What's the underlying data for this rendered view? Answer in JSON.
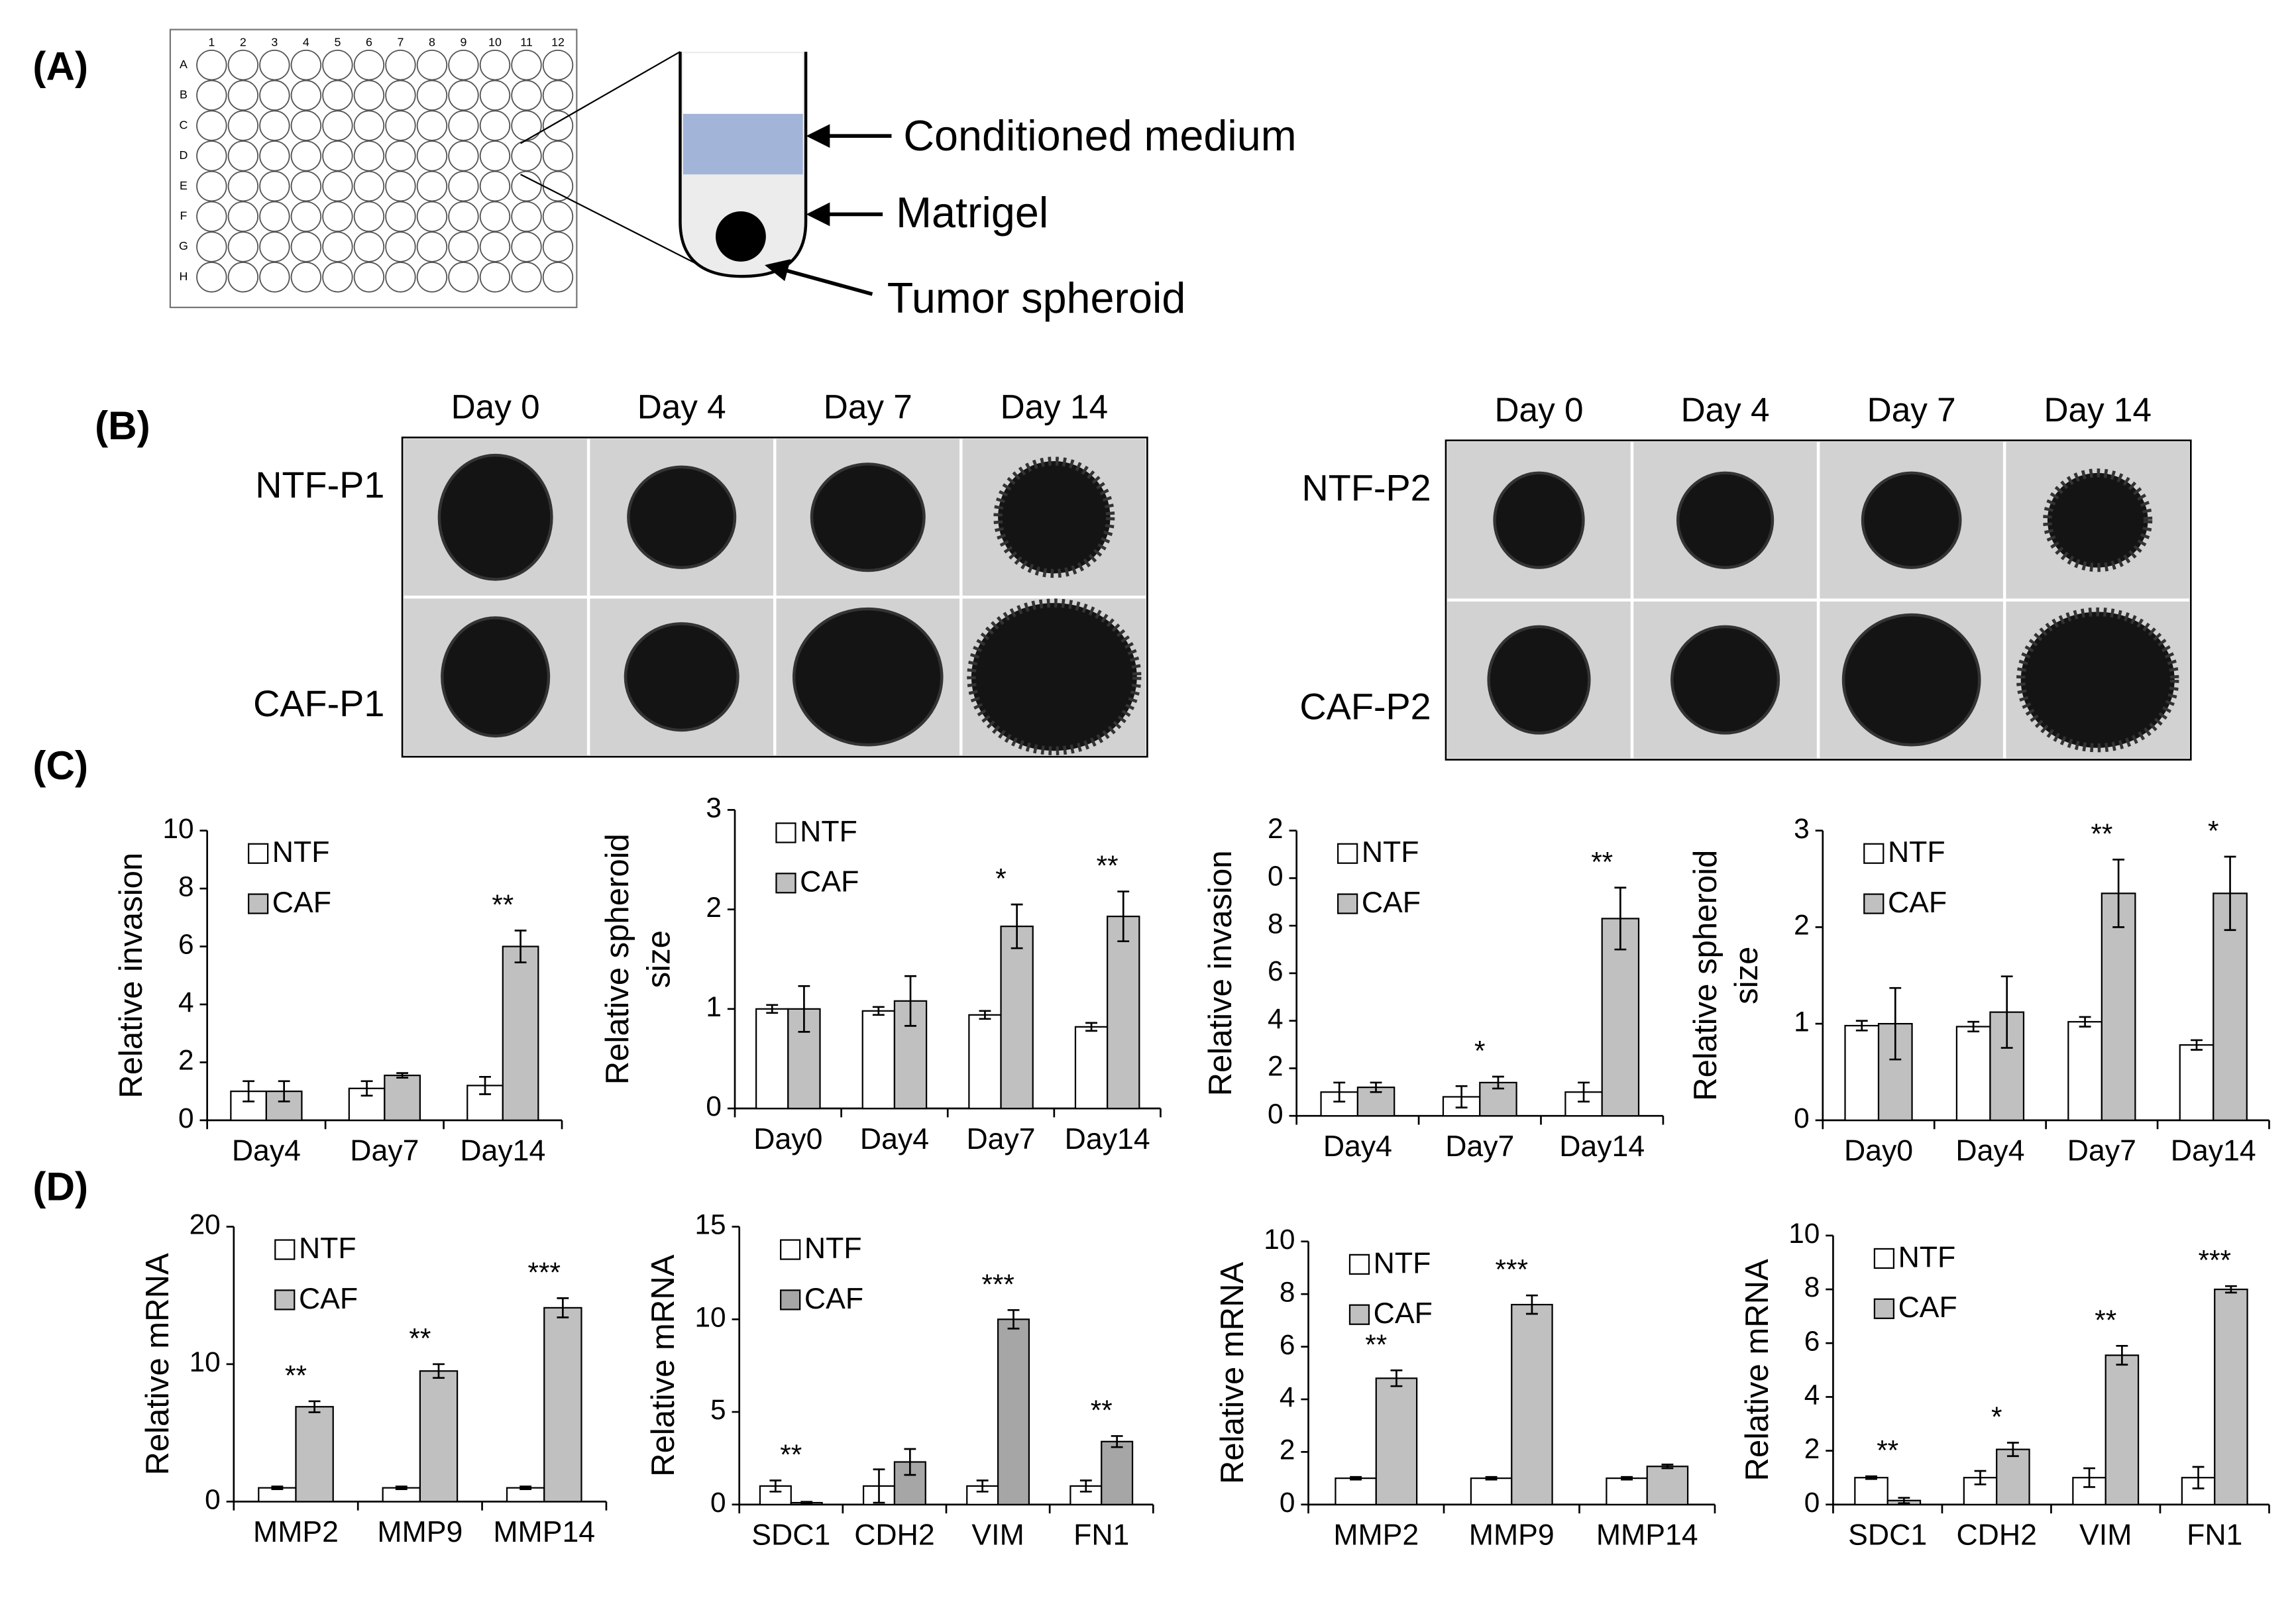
{
  "panel_labels": [
    "(A)",
    "(B)",
    "(C)",
    "(D)"
  ],
  "plate": {
    "rows": [
      "A",
      "B",
      "C",
      "D",
      "E",
      "F",
      "G",
      "H"
    ],
    "columns": [
      1,
      2,
      3,
      4,
      5,
      6,
      7,
      8,
      9,
      10,
      11,
      12
    ]
  },
  "schematic_labels": [
    "Conditioned medium",
    "Matrigel",
    "Tumor spheroid"
  ],
  "spheroid_images": [
    {
      "days": [
        "Day 0",
        "Day 4",
        "Day 7",
        "Day 14"
      ],
      "rows": [
        "NTF-P1",
        "CAF-P1"
      ]
    },
    {
      "days": [
        "Day 0",
        "Day 4",
        "Day 7",
        "Day 14"
      ],
      "rows": [
        "NTF-P2",
        "CAF-P2"
      ]
    }
  ],
  "chart_data": [
    {
      "type": "bar",
      "ylabel": "Relative invasion",
      "categories": [
        "Day4",
        "Day7",
        "Day14"
      ],
      "series": [
        {
          "name": "NTF",
          "color": "#ffffff",
          "values": [
            1.0,
            1.1,
            1.2
          ],
          "errors": [
            0.35,
            0.25,
            0.3
          ]
        },
        {
          "name": "CAF",
          "color": "#c0c0c0",
          "values": [
            1.0,
            1.55,
            6.0
          ],
          "errors": [
            0.35,
            0.08,
            0.55
          ]
        }
      ],
      "significance": [
        null,
        null,
        "**"
      ],
      "ylim": [
        0,
        10
      ],
      "yticks": [
        0,
        2,
        4,
        6,
        8,
        10
      ]
    },
    {
      "type": "bar",
      "ylabel": [
        "Relative spheroid",
        "size"
      ],
      "categories": [
        "Day0",
        "Day4",
        "Day7",
        "Day14"
      ],
      "series": [
        {
          "name": "NTF",
          "color": "#ffffff",
          "values": [
            1.0,
            0.98,
            0.94,
            0.82
          ],
          "errors": [
            0.04,
            0.04,
            0.04,
            0.04
          ]
        },
        {
          "name": "CAF",
          "color": "#c0c0c0",
          "values": [
            1.0,
            1.08,
            1.83,
            1.93
          ],
          "errors": [
            0.23,
            0.25,
            0.22,
            0.25
          ]
        }
      ],
      "significance": [
        null,
        null,
        "*",
        "**"
      ],
      "ylim": [
        0,
        3
      ],
      "yticks": [
        0,
        1,
        2,
        3
      ]
    },
    {
      "type": "bar",
      "ylabel": "Relative invasion",
      "categories": [
        "Day4",
        "Day7",
        "Day14"
      ],
      "series": [
        {
          "name": "NTF",
          "color": "#ffffff",
          "values": [
            1.0,
            0.8,
            1.0
          ],
          "errors": [
            0.4,
            0.45,
            0.4
          ]
        },
        {
          "name": "CAF",
          "color": "#c0c0c0",
          "values": [
            1.2,
            1.4,
            8.3
          ],
          "errors": [
            0.2,
            0.25,
            1.3
          ]
        }
      ],
      "significance": [
        null,
        "*",
        "**"
      ],
      "ylim": [
        0,
        12
      ],
      "yticks": [
        0,
        2,
        4,
        6,
        8,
        {
          "value": 10,
          "label": "0"
        },
        {
          "value": 12,
          "label": "2"
        }
      ]
    },
    {
      "type": "bar",
      "ylabel": [
        "Relative spheroid",
        "size"
      ],
      "categories": [
        "Day0",
        "Day4",
        "Day7",
        "Day14"
      ],
      "series": [
        {
          "name": "NTF",
          "color": "#ffffff",
          "values": [
            0.98,
            0.97,
            1.02,
            0.78
          ],
          "errors": [
            0.05,
            0.05,
            0.05,
            0.05
          ]
        },
        {
          "name": "CAF",
          "color": "#c0c0c0",
          "values": [
            1.0,
            1.12,
            2.35,
            2.35
          ],
          "errors": [
            0.37,
            0.37,
            0.35,
            0.38
          ]
        }
      ],
      "significance": [
        null,
        null,
        "**",
        "*"
      ],
      "ylim": [
        0,
        3
      ],
      "yticks": [
        0,
        1,
        2,
        3
      ]
    },
    {
      "type": "bar",
      "ylabel": "Relative mRNA",
      "categories": [
        "MMP2",
        "MMP9",
        "MMP14"
      ],
      "series": [
        {
          "name": "NTF",
          "color": "#ffffff",
          "values": [
            1,
            1,
            1
          ],
          "errors": [
            0.1,
            0.1,
            0.1
          ]
        },
        {
          "name": "CAF",
          "color": "#c0c0c0",
          "values": [
            6.9,
            9.5,
            14.1
          ],
          "errors": [
            0.4,
            0.5,
            0.7
          ]
        }
      ],
      "significance": [
        "**",
        "**",
        "***"
      ],
      "ylim": [
        0,
        20
      ],
      "yticks": [
        0,
        10,
        20
      ]
    },
    {
      "type": "bar",
      "ylabel": "Relative mRNA",
      "categories": [
        "SDC1",
        "CDH2",
        "VIM",
        "FN1"
      ],
      "series": [
        {
          "name": "NTF",
          "color": "#ffffff",
          "values": [
            1.0,
            1.0,
            1.0,
            1.0
          ],
          "errors": [
            0.3,
            0.9,
            0.3,
            0.3
          ]
        },
        {
          "name": "CAF",
          "color": "#a6a6a6",
          "values": [
            0.1,
            2.3,
            10.0,
            3.4
          ],
          "errors": [
            0.05,
            0.7,
            0.5,
            0.3
          ]
        }
      ],
      "significance": [
        "**",
        null,
        "***",
        "**"
      ],
      "ylim": [
        0,
        15
      ],
      "yticks": [
        0,
        5,
        10,
        15
      ]
    },
    {
      "type": "bar",
      "ylabel": "Relative mRNA",
      "categories": [
        "MMP2",
        "MMP9",
        "MMP14"
      ],
      "series": [
        {
          "name": "NTF",
          "color": "#ffffff",
          "values": [
            1,
            1,
            1
          ],
          "errors": [
            0.05,
            0.05,
            0.05
          ]
        },
        {
          "name": "CAF",
          "color": "#c0c0c0",
          "values": [
            4.8,
            7.6,
            1.45
          ],
          "errors": [
            0.3,
            0.35,
            0.07
          ]
        }
      ],
      "significance": [
        "**",
        "***",
        null
      ],
      "ylim": [
        0,
        10
      ],
      "yticks": [
        0,
        2,
        4,
        6,
        8,
        10
      ]
    },
    {
      "type": "bar",
      "ylabel": "Relative mRNA",
      "categories": [
        "SDC1",
        "CDH2",
        "VIM",
        "FN1"
      ],
      "series": [
        {
          "name": "NTF",
          "color": "#ffffff",
          "values": [
            1.0,
            1.0,
            1.0,
            1.0
          ],
          "errors": [
            0.05,
            0.25,
            0.35,
            0.4
          ]
        },
        {
          "name": "CAF",
          "color": "#c0c0c0",
          "values": [
            0.15,
            2.05,
            5.55,
            8.0
          ],
          "errors": [
            0.1,
            0.25,
            0.35,
            0.12
          ]
        }
      ],
      "significance": [
        "**",
        "*",
        "**",
        "***"
      ],
      "ylim": [
        0,
        10
      ],
      "yticks": [
        0,
        2,
        4,
        6,
        8,
        10
      ]
    }
  ]
}
